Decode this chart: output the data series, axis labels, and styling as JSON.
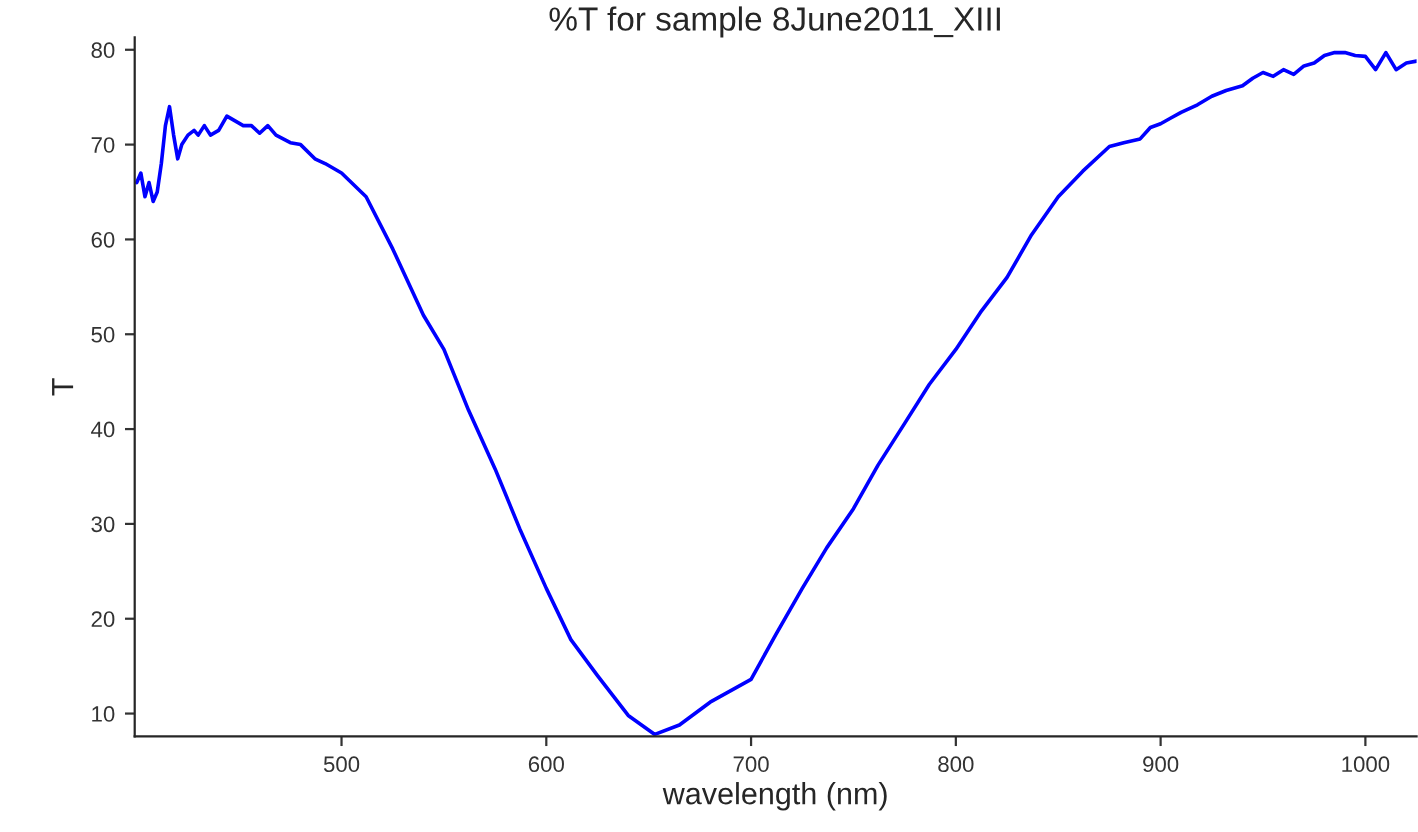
{
  "chart_data": {
    "type": "line",
    "title": "%T for sample 8June2011_XIII",
    "xlabel": "wavelength (nm)",
    "ylabel": "T",
    "x": [
      400,
      402,
      404,
      406,
      408,
      410,
      412,
      414,
      416,
      418,
      420,
      422,
      425,
      428,
      430,
      433,
      436,
      440,
      444,
      448,
      452,
      456,
      460,
      464,
      468,
      475,
      480,
      487,
      492,
      500,
      512,
      525,
      540,
      550,
      562,
      575,
      587,
      600,
      612,
      625,
      640,
      653,
      665,
      680,
      700,
      712,
      725,
      737,
      750,
      762,
      775,
      787,
      800,
      812,
      825,
      837,
      850,
      862,
      875,
      882,
      890,
      895,
      900,
      905,
      910,
      918,
      925,
      932,
      940,
      945,
      950,
      955,
      960,
      965,
      970,
      975,
      980,
      985,
      990,
      995,
      1000,
      1005,
      1010,
      1015,
      1020,
      1025
    ],
    "series": [
      {
        "color": "#0000ff",
        "values": [
          66,
          67,
          64.5,
          66,
          64,
          65,
          68,
          72,
          74,
          71,
          68.5,
          70,
          71,
          71.5,
          71,
          72,
          71,
          71.5,
          73,
          72.5,
          72,
          72,
          71.2,
          72,
          71,
          70.2,
          70,
          68.5,
          68,
          67,
          64.5,
          59,
          52,
          48.4,
          42,
          35.8,
          29.5,
          23.2,
          17.8,
          14,
          9.8,
          7.8,
          8.8,
          11.2,
          13.6,
          18.3,
          23.2,
          27.5,
          31.6,
          36.2,
          40.6,
          44.7,
          48.4,
          52.3,
          56,
          60.5,
          64.5,
          67.2,
          69.8,
          70.2,
          70.6,
          71.8,
          72.2,
          72.8,
          73.4,
          74.2,
          75.1,
          75.7,
          76.2,
          77,
          77.6,
          77.2,
          77.9,
          77.4,
          78.3,
          78.6,
          79.4,
          79.7,
          79.7,
          79.4,
          79.3,
          77.9,
          79.7,
          77.9,
          78.6,
          78.8
        ]
      }
    ],
    "xlim": [
      399,
      1025
    ],
    "ylim": [
      7.6,
      81.3
    ],
    "xticks": [
      500,
      600,
      700,
      800,
      900,
      1000
    ],
    "yticks": [
      10,
      20,
      30,
      40,
      50,
      60,
      70,
      80
    ],
    "grid": false,
    "legend": false
  }
}
